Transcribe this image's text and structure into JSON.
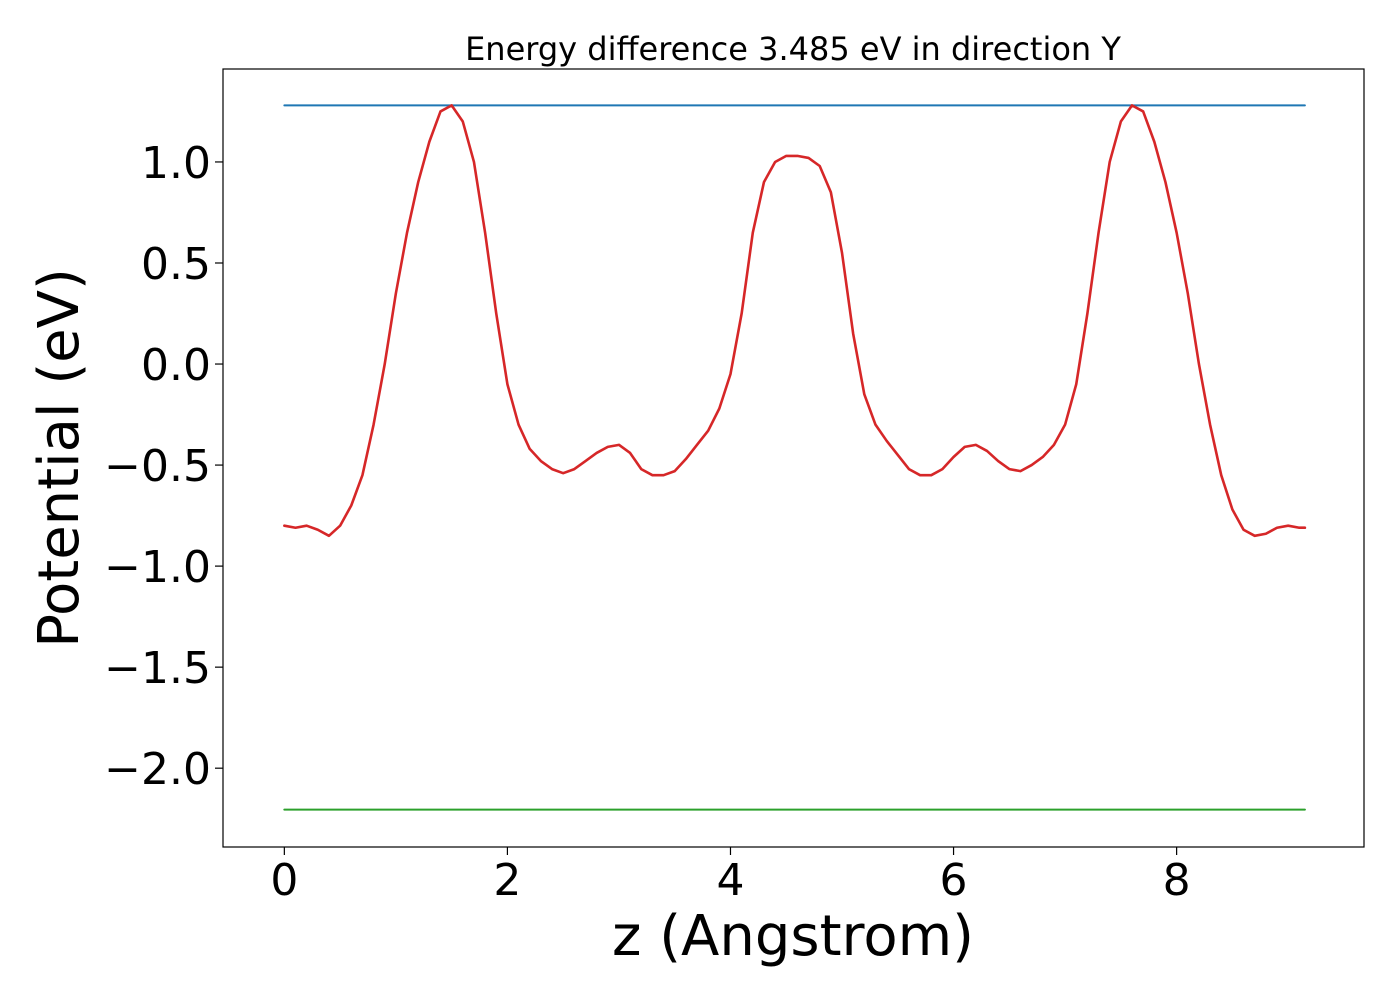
{
  "chart_data": {
    "type": "line",
    "title": "Energy difference 3.485 eV in direction Y",
    "xlabel": "z (Angstrom)",
    "ylabel": "Potential (eV)",
    "xlim": [
      -0.55,
      9.68
    ],
    "ylim": [
      -2.39,
      1.46
    ],
    "grid": false,
    "x_ticks": [
      0,
      2,
      4,
      6,
      8
    ],
    "x_tick_labels": [
      "0",
      "2",
      "4",
      "6",
      "8"
    ],
    "y_ticks": [
      1.0,
      0.5,
      0.0,
      -0.5,
      -1.0,
      -1.5,
      -2.0
    ],
    "y_tick_labels": [
      "1.0",
      "0.5",
      "0.0",
      "−0.5",
      "−1.0",
      "−1.5",
      "−2.0"
    ],
    "colors": {
      "potential": "#d62728",
      "upper_level": "#1f77b4",
      "lower_level": "#2ca02c"
    },
    "series": [
      {
        "key": "potential",
        "x": [
          0.0,
          0.1,
          0.2,
          0.3,
          0.4,
          0.5,
          0.6,
          0.7,
          0.8,
          0.9,
          1.0,
          1.1,
          1.2,
          1.3,
          1.4,
          1.5,
          1.6,
          1.7,
          1.8,
          1.9,
          2.0,
          2.1,
          2.2,
          2.3,
          2.4,
          2.5,
          2.6,
          2.7,
          2.8,
          2.9,
          3.0,
          3.1,
          3.2,
          3.3,
          3.4,
          3.5,
          3.6,
          3.7,
          3.8,
          3.9,
          4.0,
          4.1,
          4.2,
          4.3,
          4.4,
          4.5,
          4.6,
          4.7,
          4.8,
          4.9,
          5.0,
          5.1,
          5.2,
          5.3,
          5.4,
          5.5,
          5.6,
          5.7,
          5.8,
          5.9,
          6.0,
          6.1,
          6.2,
          6.3,
          6.4,
          6.5,
          6.6,
          6.7,
          6.8,
          6.9,
          7.0,
          7.1,
          7.2,
          7.3,
          7.4,
          7.5,
          7.6,
          7.7,
          7.8,
          7.9,
          8.0,
          8.1,
          8.2,
          8.3,
          8.4,
          8.5,
          8.6,
          8.7,
          8.8,
          8.9,
          9.0,
          9.1,
          9.15
        ],
        "y": [
          -0.8,
          -0.81,
          -0.8,
          -0.82,
          -0.85,
          -0.8,
          -0.7,
          -0.55,
          -0.3,
          0.0,
          0.35,
          0.65,
          0.9,
          1.1,
          1.25,
          1.28,
          1.2,
          1.0,
          0.65,
          0.25,
          -0.1,
          -0.3,
          -0.42,
          -0.48,
          -0.52,
          -0.54,
          -0.52,
          -0.48,
          -0.44,
          -0.41,
          -0.4,
          -0.44,
          -0.52,
          -0.55,
          -0.55,
          -0.53,
          -0.47,
          -0.4,
          -0.33,
          -0.22,
          -0.05,
          0.25,
          0.65,
          0.9,
          1.0,
          1.03,
          1.03,
          1.02,
          0.98,
          0.85,
          0.55,
          0.15,
          -0.15,
          -0.3,
          -0.38,
          -0.45,
          -0.52,
          -0.55,
          -0.55,
          -0.52,
          -0.46,
          -0.41,
          -0.4,
          -0.43,
          -0.48,
          -0.52,
          -0.53,
          -0.5,
          -0.46,
          -0.4,
          -0.3,
          -0.1,
          0.25,
          0.65,
          1.0,
          1.2,
          1.28,
          1.25,
          1.1,
          0.9,
          0.65,
          0.35,
          0.0,
          -0.3,
          -0.55,
          -0.72,
          -0.82,
          -0.85,
          -0.84,
          -0.81,
          -0.8,
          -0.81,
          -0.81
        ]
      },
      {
        "key": "upper_level",
        "x": [
          0.0,
          9.15
        ],
        "y": [
          1.28,
          1.28
        ]
      },
      {
        "key": "lower_level",
        "x": [
          0.0,
          9.15
        ],
        "y": [
          -2.205,
          -2.205
        ]
      }
    ]
  }
}
